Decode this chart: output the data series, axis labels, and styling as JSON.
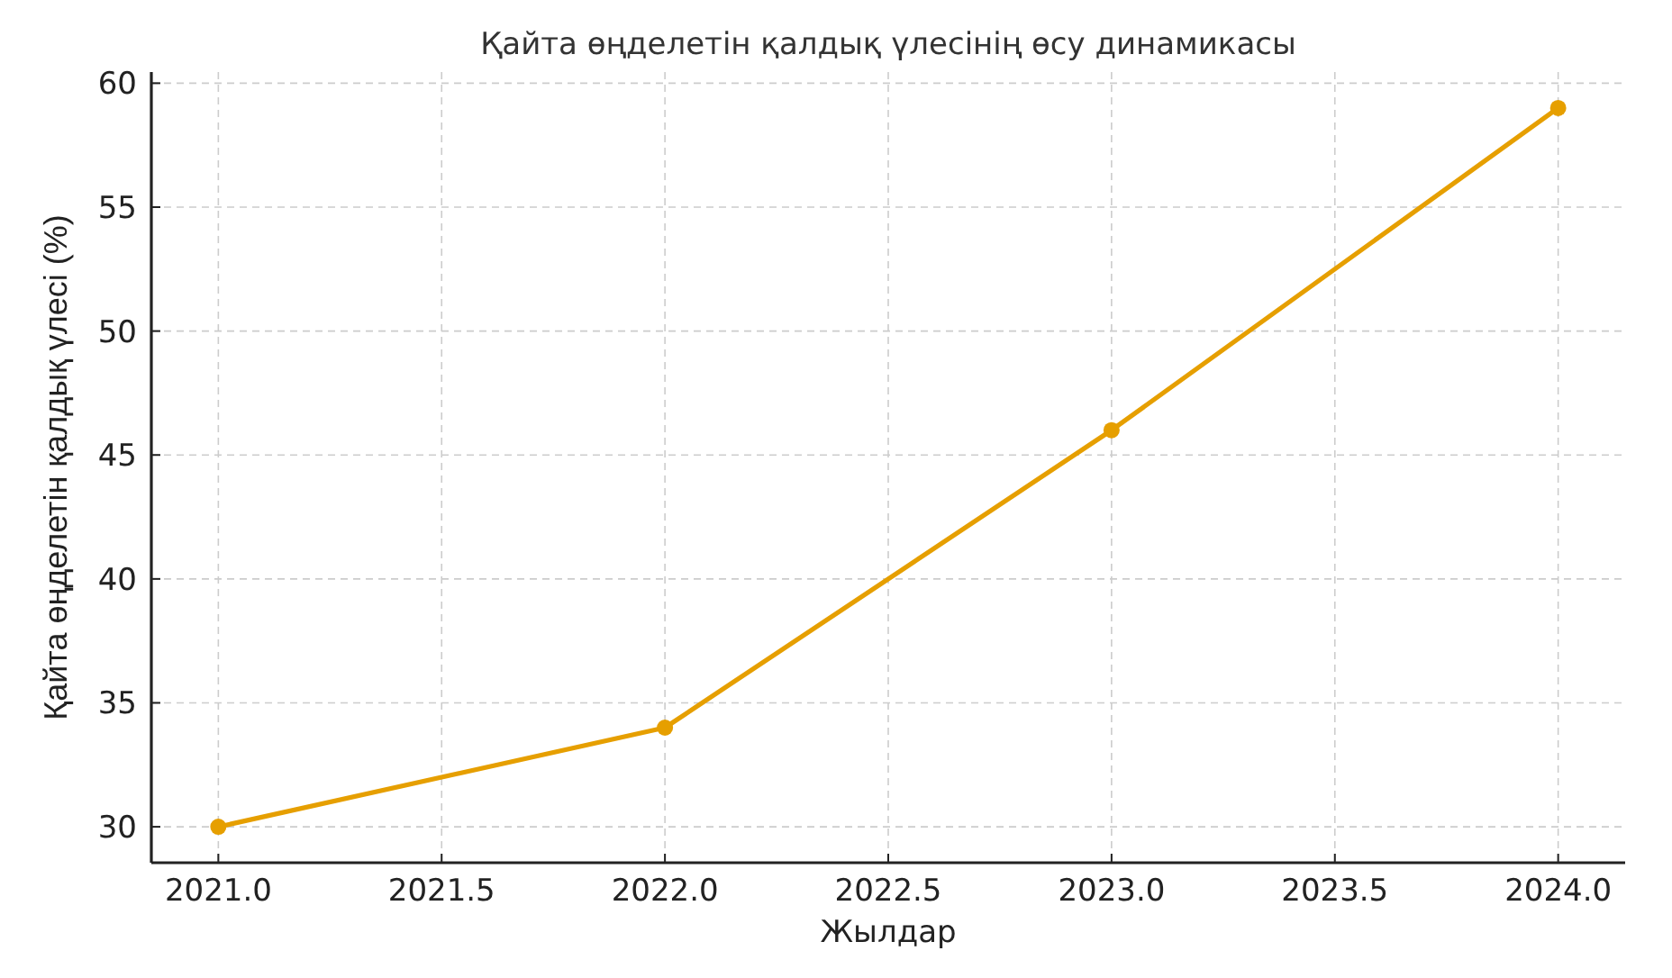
{
  "chart_data": {
    "type": "line",
    "title": "Қайта өңделетін қалдық үлесінің өсу динамикасы",
    "xlabel": "Жылдар",
    "ylabel": "Қайта өңделетін қалдық үлесі (%)",
    "x": [
      2021,
      2022,
      2023,
      2024
    ],
    "series": [
      {
        "color": "#e69f00",
        "values": [
          30,
          34,
          46,
          59
        ]
      }
    ],
    "xlim": [
      2020.85,
      2024.15
    ],
    "xticks": [
      {
        "value": 2021,
        "label": "2021.0"
      },
      {
        "value": 2021.5,
        "label": "2021.5"
      },
      {
        "value": 2022,
        "label": "2022.0"
      },
      {
        "value": 2022.5,
        "label": "2022.5"
      },
      {
        "value": 2023,
        "label": "2023.0"
      },
      {
        "value": 2023.5,
        "label": "2023.5"
      },
      {
        "value": 2024,
        "label": "2024.0"
      }
    ],
    "ylim": [
      28.55,
      60.45
    ],
    "yticks": [
      30,
      35,
      40,
      45,
      50,
      55,
      60
    ],
    "grid": true,
    "marker": "circle",
    "line_style": "solid"
  }
}
